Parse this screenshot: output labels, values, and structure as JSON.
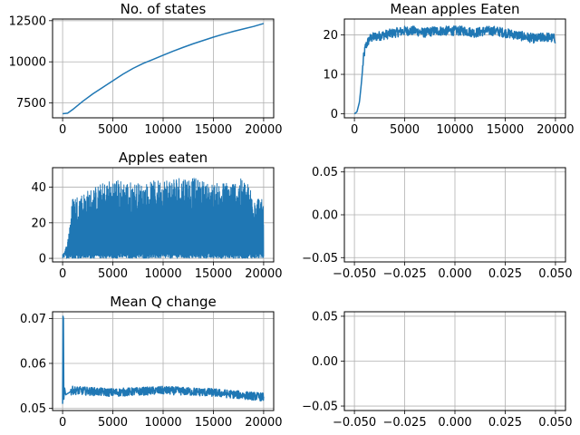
{
  "chart_data": [
    {
      "type": "line",
      "title": "No. of states",
      "color": "#1f77b4",
      "grid": true,
      "xlim": [
        -1000,
        21000
      ],
      "ylim": [
        6600,
        12600
      ],
      "xticks": [
        0,
        5000,
        10000,
        15000,
        20000
      ],
      "yticks": [
        7500,
        10000,
        12500
      ],
      "x": [
        0,
        500,
        1000,
        2000,
        3000,
        4000,
        5000,
        6000,
        7000,
        8000,
        9000,
        10000,
        11000,
        12000,
        13000,
        14000,
        15000,
        16000,
        17000,
        18000,
        19000,
        20000
      ],
      "y": [
        6850,
        6880,
        7100,
        7600,
        8050,
        8450,
        8850,
        9250,
        9600,
        9900,
        10150,
        10400,
        10650,
        10880,
        11100,
        11300,
        11500,
        11680,
        11850,
        12000,
        12150,
        12330
      ]
    },
    {
      "type": "line",
      "title": "Mean apples Eaten",
      "color": "#1f77b4",
      "grid": true,
      "xlim": [
        -1000,
        21000
      ],
      "ylim": [
        -1,
        24
      ],
      "xticks": [
        0,
        5000,
        10000,
        15000,
        20000
      ],
      "yticks": [
        0,
        10,
        20
      ],
      "x": [
        0,
        250,
        500,
        700,
        900,
        1100,
        1500,
        2000,
        3000,
        4000,
        5000,
        6000,
        7000,
        8000,
        9000,
        10000,
        11000,
        12000,
        13000,
        14000,
        15000,
        16000,
        17000,
        18000,
        19000,
        20000
      ],
      "y": [
        0,
        0.5,
        3,
        8,
        14,
        17,
        19,
        19.5,
        20,
        20.5,
        21,
        21,
        20.5,
        21,
        21,
        21,
        21,
        20.5,
        21,
        21,
        20.5,
        20,
        19.5,
        19,
        19.5,
        19
      ]
    },
    {
      "type": "line",
      "title": "Apples eaten",
      "color": "#1f77b4",
      "grid": true,
      "xlim": [
        -1000,
        21000
      ],
      "ylim": [
        -2,
        51
      ],
      "xticks": [
        0,
        5000,
        10000,
        15000,
        20000
      ],
      "yticks": [
        0,
        20,
        40
      ],
      "x": [
        0,
        500,
        1000,
        2000,
        3000,
        5000,
        8000,
        10000,
        12000,
        15000,
        18000,
        20000
      ],
      "y": [
        0,
        10,
        35,
        37,
        40,
        45,
        42,
        45,
        47,
        42,
        45,
        32
      ]
    },
    {
      "type": "line",
      "title": "",
      "color": "#1f77b4",
      "grid": true,
      "xlim": [
        -0.055,
        0.055
      ],
      "ylim": [
        -0.055,
        0.055
      ],
      "xticks": [
        -0.05,
        -0.025,
        0.0,
        0.025,
        0.05
      ],
      "yticks": [
        -0.05,
        0.0,
        0.05
      ],
      "x": [],
      "y": []
    },
    {
      "type": "line",
      "title": "Mean Q change",
      "color": "#1f77b4",
      "grid": true,
      "xlim": [
        -1000,
        21000
      ],
      "ylim": [
        0.0495,
        0.0715
      ],
      "xticks": [
        0,
        5000,
        10000,
        15000,
        20000
      ],
      "yticks": [
        0.05,
        0.06,
        0.07
      ],
      "x": [
        0,
        50,
        100,
        200,
        300,
        1000,
        5000,
        10000,
        15000,
        20000
      ],
      "y": [
        0.051,
        0.07,
        0.052,
        0.0545,
        0.053,
        0.054,
        0.0535,
        0.054,
        0.0535,
        0.0525
      ]
    },
    {
      "type": "line",
      "title": "",
      "color": "#1f77b4",
      "grid": true,
      "xlim": [
        -0.055,
        0.055
      ],
      "ylim": [
        -0.055,
        0.055
      ],
      "xticks": [
        -0.05,
        -0.025,
        0.0,
        0.025,
        0.05
      ],
      "yticks": [
        -0.05,
        0.0,
        0.05
      ],
      "x": [],
      "y": []
    }
  ]
}
